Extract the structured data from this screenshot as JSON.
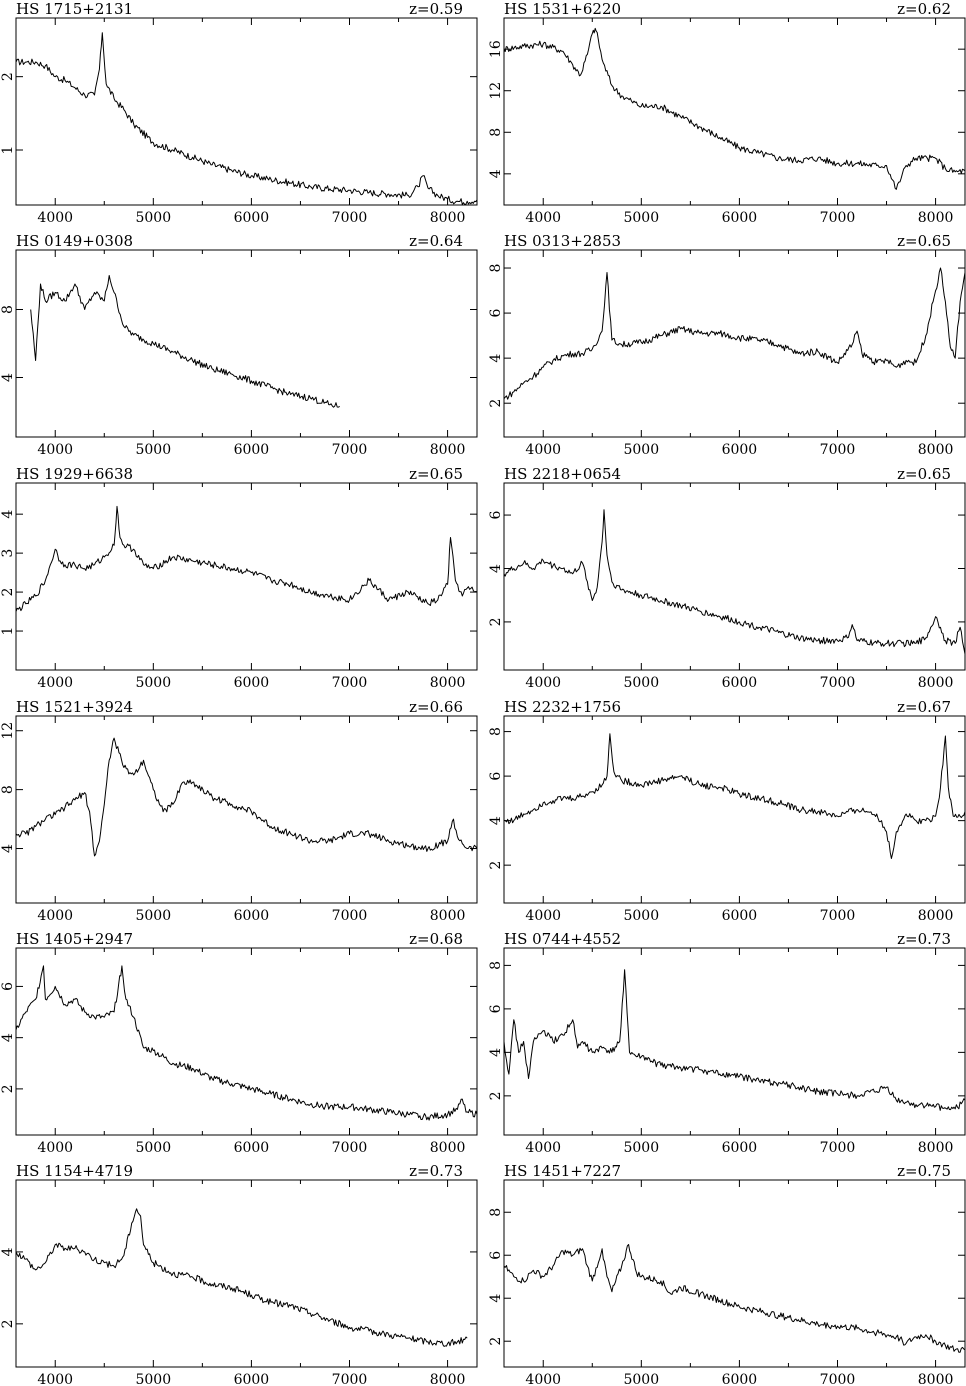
{
  "chart_data": [
    {
      "type": "line",
      "title": "HS 1715+2131",
      "redshift": "z=0.59",
      "xlim": [
        3600,
        8300
      ],
      "ylim": [
        0.25,
        2.8
      ],
      "xticks": [
        4000,
        5000,
        6000,
        7000,
        8000
      ],
      "yticks": [
        1,
        2
      ],
      "x": [
        3600,
        3700,
        3800,
        3900,
        4000,
        4100,
        4200,
        4300,
        4400,
        4450,
        4480,
        4520,
        4600,
        4700,
        4800,
        5000,
        5200,
        5400,
        5600,
        5800,
        6000,
        6200,
        6400,
        6600,
        6800,
        7000,
        7200,
        7400,
        7600,
        7700,
        7750,
        7800,
        7900,
        8000,
        8100,
        8200,
        8300
      ],
      "y": [
        2.2,
        2.2,
        2.2,
        2.15,
        2.0,
        1.95,
        1.85,
        1.75,
        1.75,
        2.1,
        2.6,
        1.9,
        1.7,
        1.55,
        1.35,
        1.1,
        1.0,
        0.9,
        0.8,
        0.72,
        0.65,
        0.6,
        0.55,
        0.5,
        0.47,
        0.45,
        0.42,
        0.4,
        0.38,
        0.5,
        0.65,
        0.48,
        0.38,
        0.33,
        0.3,
        0.3,
        0.32
      ]
    },
    {
      "type": "line",
      "title": "HS 1531+6220",
      "redshift": "z=0.62",
      "xlim": [
        3600,
        8300
      ],
      "ylim": [
        1,
        19
      ],
      "xticks": [
        4000,
        5000,
        6000,
        7000,
        8000
      ],
      "yticks": [
        4,
        8,
        12,
        16
      ],
      "x": [
        3600,
        3800,
        4000,
        4200,
        4300,
        4380,
        4450,
        4500,
        4530,
        4560,
        4600,
        4700,
        4800,
        4900,
        5000,
        5200,
        5400,
        5600,
        5800,
        6000,
        6200,
        6400,
        6600,
        6800,
        7000,
        7200,
        7400,
        7500,
        7600,
        7700,
        7800,
        8000,
        8100,
        8200,
        8300
      ],
      "y": [
        16,
        16.3,
        16.5,
        15.8,
        14.5,
        13.5,
        15.5,
        17.5,
        18,
        17,
        15,
        12.5,
        11.5,
        11,
        10.5,
        10.5,
        9.5,
        8.5,
        7.5,
        6.5,
        6,
        5.5,
        5.3,
        5.5,
        5,
        5,
        4.8,
        4.8,
        2.5,
        4.8,
        5.5,
        5.5,
        4.5,
        4.2,
        4.3
      ]
    },
    {
      "type": "line",
      "title": "HS 0149+0308",
      "redshift": "z=0.64",
      "xlim": [
        3600,
        8300
      ],
      "ylim": [
        0.5,
        11.5
      ],
      "xticks": [
        4000,
        5000,
        6000,
        7000,
        8000
      ],
      "yticks": [
        4,
        8
      ],
      "x": [
        3750,
        3800,
        3850,
        3900,
        4000,
        4100,
        4200,
        4300,
        4400,
        4500,
        4550,
        4600,
        4700,
        4800,
        5000,
        5200,
        5400,
        5600,
        5800,
        6000,
        6200,
        6400,
        6600,
        6800,
        6900
      ],
      "y": [
        8,
        5,
        9.5,
        8.5,
        9,
        8.5,
        9.5,
        8,
        9,
        8.5,
        10,
        9,
        7,
        6.5,
        6,
        5.5,
        5,
        4.5,
        4.2,
        3.8,
        3.4,
        3,
        2.8,
        2.4,
        2.3
      ]
    },
    {
      "type": "line",
      "title": "HS 0313+2853",
      "redshift": "z=0.65",
      "xlim": [
        3600,
        8300
      ],
      "ylim": [
        0.5,
        8.8
      ],
      "xticks": [
        4000,
        5000,
        6000,
        7000,
        8000
      ],
      "yticks": [
        2,
        4,
        6,
        8
      ],
      "x": [
        3600,
        3700,
        3800,
        3900,
        4000,
        4100,
        4200,
        4300,
        4400,
        4500,
        4600,
        4650,
        4700,
        4800,
        5000,
        5200,
        5400,
        5600,
        5800,
        6000,
        6200,
        6400,
        6600,
        6800,
        7000,
        7150,
        7200,
        7250,
        7400,
        7500,
        7600,
        7700,
        7800,
        7900,
        8000,
        8050,
        8100,
        8150,
        8200,
        8250,
        8300
      ],
      "y": [
        2.2,
        2.5,
        2.9,
        3.2,
        3.6,
        3.9,
        4.1,
        4.2,
        4.2,
        4.4,
        5.2,
        7.8,
        4.8,
        4.6,
        4.7,
        5,
        5.3,
        5.1,
        5.1,
        4.9,
        4.8,
        4.6,
        4.2,
        4.3,
        3.8,
        4.6,
        5.2,
        4.2,
        3.8,
        3.9,
        3.6,
        3.9,
        3.8,
        5,
        7,
        8,
        6.5,
        4.5,
        4,
        6.5,
        7.8
      ]
    },
    {
      "type": "line",
      "title": "HS 1929+6638",
      "redshift": "z=0.65",
      "xlim": [
        3600,
        8300
      ],
      "ylim": [
        0,
        4.8
      ],
      "xticks": [
        4000,
        5000,
        6000,
        7000,
        8000
      ],
      "yticks": [
        1,
        2,
        3,
        4
      ],
      "x": [
        3600,
        3700,
        3800,
        3900,
        3950,
        4000,
        4050,
        4100,
        4200,
        4300,
        4400,
        4500,
        4600,
        4630,
        4660,
        4700,
        4800,
        4900,
        5000,
        5200,
        5400,
        5600,
        5800,
        6000,
        6200,
        6400,
        6600,
        6800,
        7000,
        7200,
        7400,
        7600,
        7800,
        7900,
        8000,
        8030,
        8080,
        8150,
        8200,
        8300
      ],
      "y": [
        1.5,
        1.7,
        1.9,
        2.3,
        2.7,
        3.1,
        2.8,
        2.7,
        2.7,
        2.6,
        2.7,
        2.9,
        3.2,
        4.2,
        3.4,
        3.2,
        3.1,
        2.7,
        2.6,
        2.9,
        2.8,
        2.7,
        2.6,
        2.5,
        2.3,
        2.2,
        2.0,
        1.9,
        1.8,
        2.3,
        1.8,
        2.0,
        1.7,
        1.8,
        2.2,
        3.4,
        2.3,
        1.9,
        2.1,
        2.0
      ]
    },
    {
      "type": "line",
      "title": "HS 2218+0654",
      "redshift": "z=0.65",
      "xlim": [
        3600,
        8300
      ],
      "ylim": [
        0.2,
        7.2
      ],
      "xticks": [
        4000,
        5000,
        6000,
        7000,
        8000
      ],
      "yticks": [
        2,
        4,
        6
      ],
      "x": [
        3600,
        3700,
        3800,
        3900,
        4000,
        4100,
        4200,
        4300,
        4400,
        4450,
        4500,
        4550,
        4600,
        4620,
        4650,
        4700,
        4800,
        5000,
        5200,
        5400,
        5600,
        5800,
        6000,
        6200,
        6400,
        6600,
        6800,
        7000,
        7100,
        7150,
        7200,
        7400,
        7600,
        7800,
        7900,
        8000,
        8050,
        8100,
        8200,
        8250,
        8300
      ],
      "y": [
        3.8,
        4,
        4.2,
        4,
        4.3,
        4.1,
        4,
        3.8,
        4.2,
        3.5,
        2.8,
        3.3,
        5,
        6.2,
        4.5,
        3.5,
        3.2,
        3,
        2.8,
        2.6,
        2.4,
        2.2,
        2,
        1.8,
        1.6,
        1.4,
        1.3,
        1.3,
        1.4,
        1.9,
        1.3,
        1.2,
        1.2,
        1.2,
        1.4,
        2.2,
        1.8,
        1.3,
        1.2,
        1.8,
        0.8
      ]
    },
    {
      "type": "line",
      "title": "HS 1521+3924",
      "redshift": "z=0.66",
      "xlim": [
        3600,
        8300
      ],
      "ylim": [
        0.3,
        13
      ],
      "xticks": [
        4000,
        5000,
        6000,
        7000,
        8000
      ],
      "yticks": [
        4,
        8,
        12
      ],
      "x": [
        3600,
        3700,
        3800,
        3900,
        4000,
        4100,
        4200,
        4300,
        4350,
        4400,
        4450,
        4500,
        4550,
        4600,
        4650,
        4700,
        4800,
        4900,
        5000,
        5100,
        5200,
        5300,
        5400,
        5600,
        5800,
        6000,
        6200,
        6400,
        6600,
        6800,
        7000,
        7200,
        7400,
        7600,
        7800,
        8000,
        8060,
        8100,
        8200,
        8300
      ],
      "y": [
        5,
        5,
        5.5,
        6,
        6.3,
        6.8,
        7.3,
        7.8,
        6.5,
        3.5,
        4.5,
        7,
        10,
        11.5,
        10.5,
        9.5,
        9,
        10,
        8,
        6.5,
        7,
        8.5,
        8.5,
        7.5,
        7,
        6.5,
        5.5,
        5,
        4.5,
        4.5,
        5,
        5,
        4.5,
        4.2,
        4,
        4.5,
        6,
        4.8,
        4,
        4
      ]
    },
    {
      "type": "line",
      "title": "HS 2232+1756",
      "redshift": "z=0.67",
      "xlim": [
        3600,
        8300
      ],
      "ylim": [
        0.3,
        8.7
      ],
      "xticks": [
        4000,
        5000,
        6000,
        7000,
        8000
      ],
      "yticks": [
        2,
        4,
        6,
        8
      ],
      "x": [
        3600,
        3700,
        3800,
        3900,
        4000,
        4100,
        4200,
        4300,
        4400,
        4500,
        4600,
        4650,
        4680,
        4720,
        4800,
        5000,
        5200,
        5400,
        5600,
        5800,
        6000,
        6200,
        6400,
        6600,
        6800,
        7000,
        7200,
        7400,
        7500,
        7550,
        7600,
        7700,
        7800,
        7900,
        8000,
        8050,
        8100,
        8130,
        8180,
        8250,
        8300
      ],
      "y": [
        4,
        4,
        4.3,
        4.5,
        4.8,
        4.9,
        5,
        5,
        5.1,
        5.3,
        5.6,
        6,
        7.9,
        6.2,
        5.8,
        5.6,
        5.8,
        6,
        5.6,
        5.5,
        5.2,
        5,
        4.8,
        4.5,
        4.4,
        4.2,
        4.5,
        4.3,
        3.5,
        2.3,
        3.5,
        4.3,
        4,
        4,
        4.2,
        5.5,
        7.8,
        5.5,
        4.2,
        4.2,
        4.4
      ]
    },
    {
      "type": "line",
      "title": "HS 1405+2947",
      "redshift": "z=0.68",
      "xlim": [
        3600,
        8300
      ],
      "ylim": [
        0.2,
        7.5
      ],
      "xticks": [
        4000,
        5000,
        6000,
        7000,
        8000
      ],
      "yticks": [
        2,
        4,
        6
      ],
      "x": [
        3600,
        3700,
        3800,
        3880,
        3900,
        4000,
        4100,
        4200,
        4300,
        4400,
        4500,
        4600,
        4680,
        4720,
        4800,
        4900,
        5000,
        5200,
        5400,
        5600,
        5800,
        6000,
        6200,
        6400,
        6600,
        6800,
        7000,
        7200,
        7400,
        7600,
        7800,
        8000,
        8100,
        8150,
        8200,
        8300
      ],
      "y": [
        4.3,
        5,
        5.5,
        6.8,
        5.5,
        6,
        5.3,
        5.5,
        5,
        4.8,
        4.8,
        5,
        6.8,
        5.5,
        4.8,
        3.6,
        3.5,
        3,
        2.8,
        2.4,
        2.2,
        2,
        1.8,
        1.6,
        1.4,
        1.3,
        1.3,
        1.2,
        1.1,
        1,
        0.9,
        1,
        1.2,
        1.6,
        1.1,
        1
      ]
    },
    {
      "type": "line",
      "title": "HS 0744+4552",
      "redshift": "z=0.73",
      "xlim": [
        3600,
        8300
      ],
      "ylim": [
        0.2,
        8.8
      ],
      "xticks": [
        4000,
        5000,
        6000,
        7000,
        8000
      ],
      "yticks": [
        2,
        4,
        6,
        8
      ],
      "x": [
        3600,
        3650,
        3700,
        3750,
        3800,
        3850,
        3900,
        4000,
        4100,
        4200,
        4300,
        4350,
        4400,
        4500,
        4600,
        4700,
        4780,
        4830,
        4880,
        4950,
        5000,
        5200,
        5400,
        5600,
        5800,
        6000,
        6200,
        6400,
        6600,
        6800,
        7000,
        7200,
        7400,
        7500,
        7600,
        7800,
        8000,
        8200,
        8300
      ],
      "y": [
        4.5,
        3,
        5.5,
        4,
        4.5,
        2.8,
        4.5,
        5,
        4.5,
        4.8,
        5.5,
        4.2,
        4.5,
        4,
        4.2,
        4,
        4.5,
        7.8,
        4,
        3.8,
        3.8,
        3.4,
        3.3,
        3.2,
        3,
        2.9,
        2.7,
        2.6,
        2.4,
        2.2,
        2.1,
        2,
        2.2,
        2.4,
        1.8,
        1.6,
        1.5,
        1.4,
        1.8
      ]
    },
    {
      "type": "line",
      "title": "HS 1154+4719",
      "redshift": "z=0.73",
      "xlim": [
        3600,
        8300
      ],
      "ylim": [
        0.8,
        6
      ],
      "xticks": [
        4000,
        5000,
        6000,
        7000,
        8000
      ],
      "yticks": [
        2,
        4
      ],
      "x": [
        3600,
        3700,
        3800,
        3900,
        4000,
        4100,
        4200,
        4300,
        4400,
        4500,
        4600,
        4700,
        4780,
        4830,
        4870,
        4900,
        5000,
        5200,
        5400,
        5600,
        5800,
        6000,
        6200,
        6400,
        6600,
        6800,
        7000,
        7200,
        7400,
        7600,
        7800,
        8000,
        8100,
        8200
      ],
      "y": [
        4,
        3.8,
        3.5,
        3.7,
        4.2,
        4.1,
        4.1,
        4,
        3.8,
        3.7,
        3.6,
        3.9,
        4.8,
        5.2,
        5,
        4.2,
        3.7,
        3.4,
        3.3,
        3.1,
        3,
        2.8,
        2.6,
        2.5,
        2.3,
        2.1,
        1.9,
        1.8,
        1.7,
        1.6,
        1.5,
        1.45,
        1.5,
        1.6
      ]
    },
    {
      "type": "line",
      "title": "HS 1451+7227",
      "redshift": "z=0.75",
      "xlim": [
        3600,
        8300
      ],
      "ylim": [
        0.8,
        9.5
      ],
      "xticks": [
        4000,
        5000,
        6000,
        7000,
        8000
      ],
      "yticks": [
        2,
        4,
        6,
        8
      ],
      "x": [
        3600,
        3700,
        3800,
        3900,
        4000,
        4100,
        4200,
        4300,
        4400,
        4450,
        4500,
        4600,
        4650,
        4700,
        4800,
        4870,
        4950,
        5000,
        5200,
        5300,
        5400,
        5600,
        5800,
        6000,
        6200,
        6400,
        6600,
        6800,
        7000,
        7200,
        7400,
        7600,
        7700,
        7800,
        7900,
        8000,
        8100,
        8200,
        8300
      ],
      "y": [
        5.5,
        5,
        4.8,
        5.3,
        5,
        5.5,
        6.2,
        6,
        6.3,
        5.5,
        4.8,
        6.3,
        5,
        4.3,
        5.5,
        6.5,
        5.2,
        5,
        4.8,
        4.2,
        4.5,
        4.2,
        3.9,
        3.6,
        3.4,
        3.2,
        3,
        2.8,
        2.7,
        2.6,
        2.4,
        2.2,
        1.9,
        2.2,
        2.3,
        2.0,
        1.8,
        1.6,
        1.6
      ]
    }
  ]
}
